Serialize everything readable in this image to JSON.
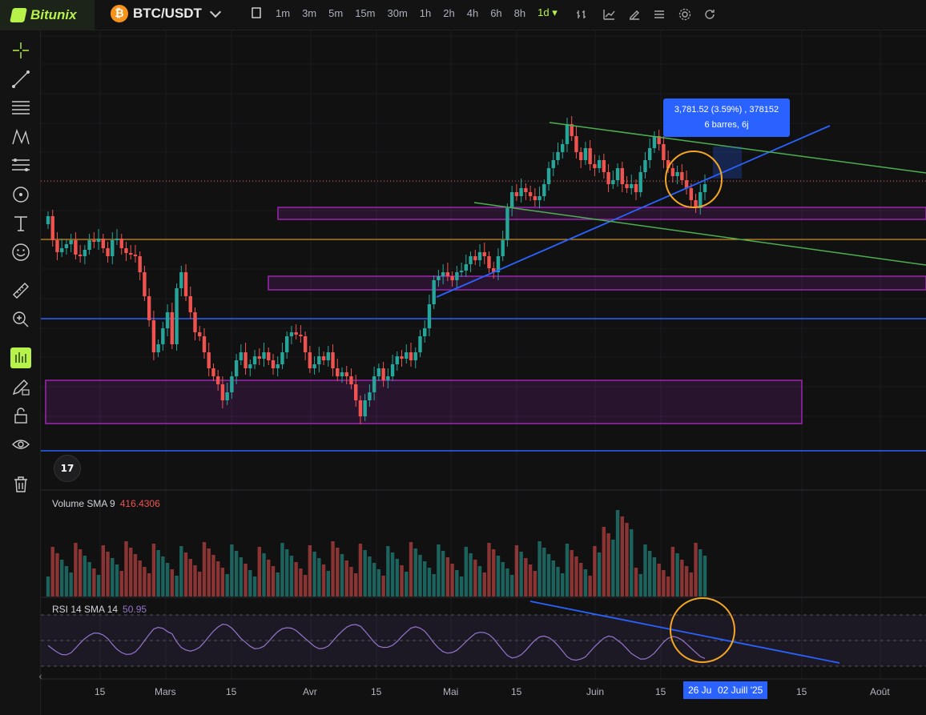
{
  "brand": {
    "name": "Bitunix",
    "accent": "#b6f24a"
  },
  "pair": {
    "symbol": "BTC/USDT",
    "coin_glyph": "₿"
  },
  "timeframes": [
    {
      "label": "1m"
    },
    {
      "label": "3m"
    },
    {
      "label": "5m"
    },
    {
      "label": "15m"
    },
    {
      "label": "30m"
    },
    {
      "label": "1h"
    },
    {
      "label": "2h"
    },
    {
      "label": "4h"
    },
    {
      "label": "6h"
    },
    {
      "label": "8h"
    }
  ],
  "active_timeframe": "1d",
  "toolbar_icons": [
    "bar-chart-icon",
    "indicator-icon",
    "drawing-icon",
    "list-icon",
    "settings-icon",
    "refresh-icon"
  ],
  "left_tools": [
    "crosshair-icon",
    "trendline-icon",
    "horizontal-lines-icon",
    "pattern-icon",
    "fib-icon",
    "circle-tool-icon",
    "text-icon",
    "emoji-icon",
    "ruler-icon",
    "zoom-icon",
    "magnet-icon",
    "lock-draw-icon",
    "lock-icon",
    "eye-icon",
    "trash-icon"
  ],
  "measure": {
    "line1": "3,781.52 (3.59%) , 378152",
    "line2": "6 barres, 6j"
  },
  "volume": {
    "label": "Volume SMA 9",
    "value": "416.4306"
  },
  "rsi": {
    "label": "RSI 14 SMA 14",
    "value": "50.95"
  },
  "tv_badge": "17",
  "x_axis": [
    {
      "label": "15"
    },
    {
      "label": "Mars"
    },
    {
      "label": "15"
    },
    {
      "label": "Avr"
    },
    {
      "label": "15"
    },
    {
      "label": "Mai"
    },
    {
      "label": "15"
    },
    {
      "label": "Juin"
    },
    {
      "label": "15"
    },
    {
      "label": "15"
    },
    {
      "label": "Août"
    }
  ],
  "x_axis_highlight": {
    "left": "26 Ju",
    "right": "02 Juill '25"
  },
  "colors": {
    "up": "#26a69a",
    "down": "#ef5350",
    "zone": "#9c27b0",
    "blue_line": "#2962ff",
    "green_line": "#4caf50",
    "circle": "#f5a623"
  }
}
